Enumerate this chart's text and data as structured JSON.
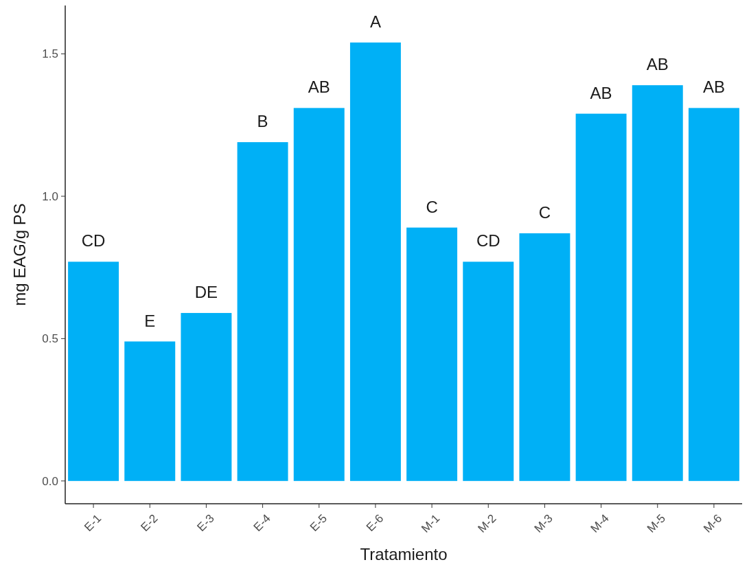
{
  "chart_data": {
    "type": "bar",
    "xlabel": "Tratamiento",
    "ylabel": "mg EAG/g PS",
    "categories": [
      "E-1",
      "E-2",
      "E-3",
      "E-4",
      "E-5",
      "E-6",
      "M-1",
      "M-2",
      "M-3",
      "M-4",
      "M-5",
      "M-6"
    ],
    "values": [
      0.77,
      0.49,
      0.59,
      1.19,
      1.31,
      1.54,
      0.89,
      0.77,
      0.87,
      1.29,
      1.39,
      1.31
    ],
    "color": "#00b0f6",
    "ylim": [
      -0.08,
      1.67
    ],
    "yticks": [
      {
        "value": 0,
        "label": "0.0"
      },
      {
        "value": 0.5,
        "label": "0.5"
      },
      {
        "value": 1,
        "label": "1.0"
      },
      {
        "value": 1.5,
        "label": "1.5"
      }
    ],
    "grid": false,
    "annotations": [
      {
        "text": "CD",
        "x": "E-1",
        "y": 0.77
      },
      {
        "text": "E",
        "x": "E-2",
        "y": 0.49
      },
      {
        "text": "DE",
        "x": "E-3",
        "y": 0.59
      },
      {
        "text": "B",
        "x": "E-4",
        "y": 1.19
      },
      {
        "text": "AB",
        "x": "E-5",
        "y": 1.31
      },
      {
        "text": "A",
        "x": "E-6",
        "y": 1.54
      },
      {
        "text": "C",
        "x": "M-1",
        "y": 0.89
      },
      {
        "text": "CD",
        "x": "M-2",
        "y": 0.77
      },
      {
        "text": "C",
        "x": "M-3",
        "y": 0.87
      },
      {
        "text": "AB",
        "x": "M-4",
        "y": 1.29
      },
      {
        "text": "AB",
        "x": "M-5",
        "y": 1.39
      },
      {
        "text": "AB",
        "x": "M-6",
        "y": 1.31
      }
    ]
  }
}
